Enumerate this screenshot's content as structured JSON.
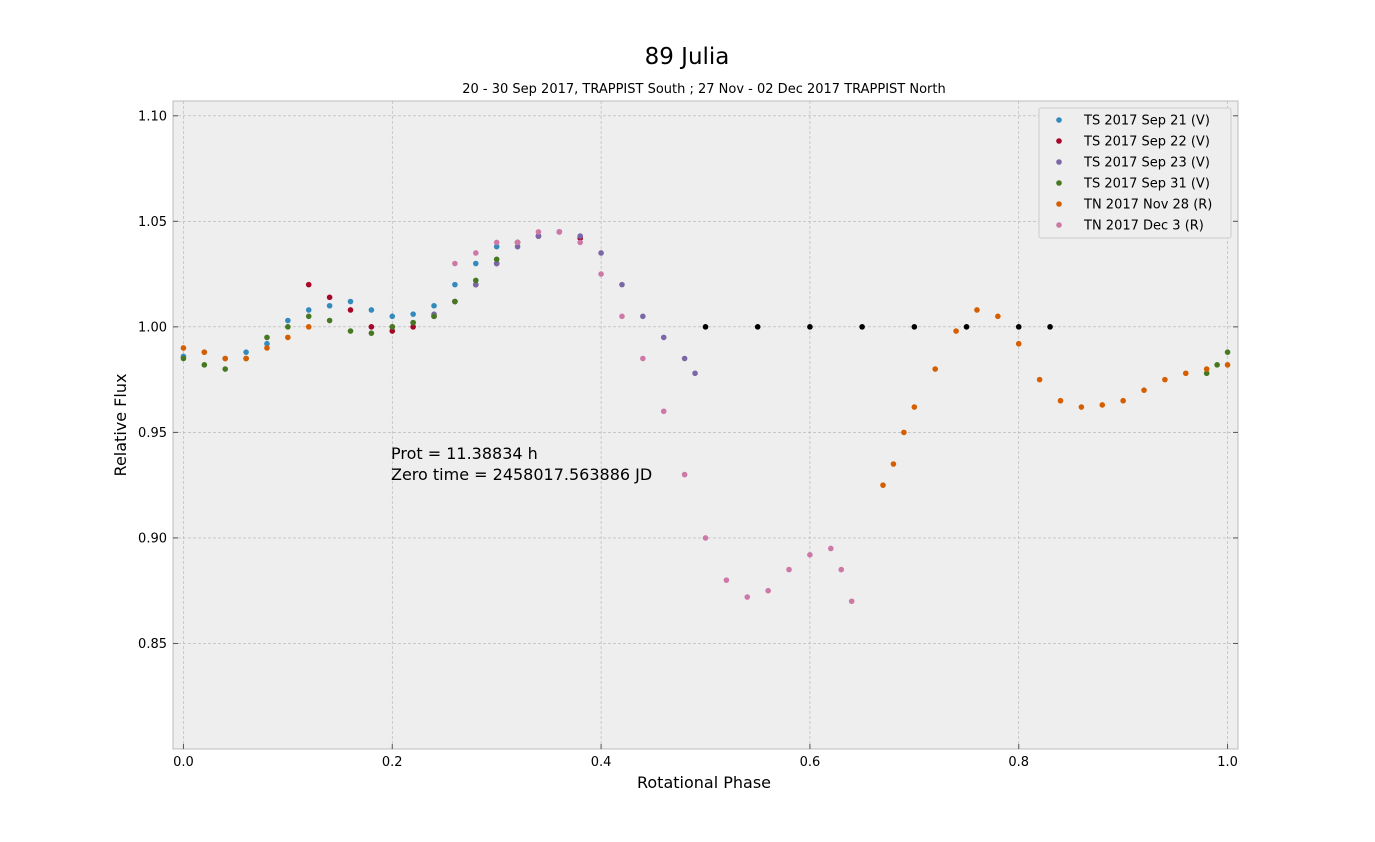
{
  "chart_data": {
    "type": "scatter",
    "title": "89 Julia",
    "subtitle": "20 - 30 Sep 2017, TRAPPIST South ; 27 Nov - 02 Dec 2017 TRAPPIST North",
    "xlabel": "Rotational Phase",
    "ylabel": "Relative Flux",
    "xlim": [
      -0.01,
      1.01
    ],
    "ylim": [
      0.8,
      1.107
    ],
    "xticks": [
      0.0,
      0.2,
      0.4,
      0.6,
      0.8,
      1.0
    ],
    "xtick_labels": [
      "0.0",
      "0.2",
      "0.4",
      "0.6",
      "0.8",
      "1.0"
    ],
    "yticks": [
      0.85,
      0.9,
      0.95,
      1.0,
      1.05,
      1.1
    ],
    "ytick_labels": [
      "0.85",
      "0.90",
      "0.95",
      "1.00",
      "1.05",
      "1.10"
    ],
    "grid": true,
    "legend_position": "top-right",
    "annotations": [
      "Prot = 11.38834 h",
      "Zero time = 2458017.563886 JD"
    ],
    "series": [
      {
        "name": "TS 2017 Sep 21  (V)",
        "color": "#348ABD",
        "x": [
          0.0,
          0.02,
          0.04,
          0.06,
          0.08,
          0.1,
          0.12,
          0.14,
          0.16,
          0.18,
          0.2,
          0.22,
          0.24,
          0.26,
          0.28,
          0.3
        ],
        "y": [
          0.986,
          0.988,
          0.985,
          0.988,
          0.992,
          1.003,
          1.008,
          1.01,
          1.012,
          1.008,
          1.005,
          1.006,
          1.01,
          1.02,
          1.03,
          1.038
        ]
      },
      {
        "name": "TS 2017 Sep 22  (V)",
        "color": "#A60628",
        "x": [
          0.12,
          0.14,
          0.16,
          0.18,
          0.2,
          0.22,
          0.24,
          0.26,
          0.28,
          0.3,
          0.32,
          0.34,
          0.36,
          0.38
        ],
        "y": [
          1.02,
          1.014,
          1.008,
          1.0,
          0.998,
          1.0,
          1.005,
          1.012,
          1.02,
          1.03,
          1.04,
          1.043,
          1.045,
          1.042
        ]
      },
      {
        "name": "TS 2017 Sep 23  (V)",
        "color": "#7A68A6",
        "x": [
          0.2,
          0.22,
          0.24,
          0.26,
          0.28,
          0.3,
          0.32,
          0.34,
          0.36,
          0.38,
          0.4,
          0.42,
          0.44,
          0.46,
          0.48,
          0.49
        ],
        "y": [
          1.0,
          1.002,
          1.006,
          1.012,
          1.02,
          1.03,
          1.038,
          1.043,
          1.045,
          1.043,
          1.035,
          1.02,
          1.005,
          0.995,
          0.985,
          0.978
        ]
      },
      {
        "name": "TS 2017 Sep 31  (V)",
        "color": "#467821",
        "x": [
          0.0,
          0.02,
          0.04,
          0.06,
          0.08,
          0.1,
          0.12,
          0.14,
          0.16,
          0.18,
          0.2,
          0.22,
          0.24,
          0.26,
          0.28,
          0.3,
          0.32,
          0.98,
          0.99,
          1.0
        ],
        "y": [
          0.985,
          0.982,
          0.98,
          0.985,
          0.995,
          1.0,
          1.005,
          1.003,
          0.998,
          0.997,
          1.0,
          1.002,
          1.005,
          1.012,
          1.022,
          1.032,
          1.04,
          0.978,
          0.982,
          0.988
        ]
      },
      {
        "name": "TN 2017 Nov 28  (R)",
        "color": "#D55E00",
        "x": [
          0.0,
          0.02,
          0.04,
          0.06,
          0.08,
          0.1,
          0.12,
          0.67,
          0.68,
          0.69,
          0.7,
          0.72,
          0.74,
          0.76,
          0.78,
          0.8,
          0.82,
          0.84,
          0.86,
          0.88,
          0.9,
          0.92,
          0.94,
          0.96,
          0.98,
          1.0
        ],
        "y": [
          0.99,
          0.988,
          0.985,
          0.985,
          0.99,
          0.995,
          1.0,
          0.925,
          0.935,
          0.95,
          0.962,
          0.98,
          0.998,
          1.008,
          1.005,
          0.992,
          0.975,
          0.965,
          0.962,
          0.963,
          0.965,
          0.97,
          0.975,
          0.978,
          0.98,
          0.982
        ]
      },
      {
        "name": "TN 2017 Dec 3  (R)",
        "color": "#CC79A7",
        "x": [
          0.26,
          0.28,
          0.3,
          0.32,
          0.34,
          0.36,
          0.38,
          0.4,
          0.42,
          0.44,
          0.46,
          0.48,
          0.5,
          0.52,
          0.54,
          0.56,
          0.58,
          0.6,
          0.62,
          0.63,
          0.64
        ],
        "y": [
          1.03,
          1.035,
          1.04,
          1.04,
          1.045,
          1.045,
          1.04,
          1.025,
          1.005,
          0.985,
          0.96,
          0.93,
          0.9,
          0.88,
          0.872,
          0.875,
          0.885,
          0.892,
          0.895,
          0.885,
          0.87
        ]
      },
      {
        "name": "",
        "color": "#000000",
        "x": [
          0.5,
          0.55,
          0.6,
          0.65,
          0.7,
          0.75,
          0.8,
          0.83
        ],
        "y": [
          1.0,
          1.0,
          1.0,
          1.0,
          1.0,
          1.0,
          1.0,
          1.0
        ]
      }
    ]
  }
}
